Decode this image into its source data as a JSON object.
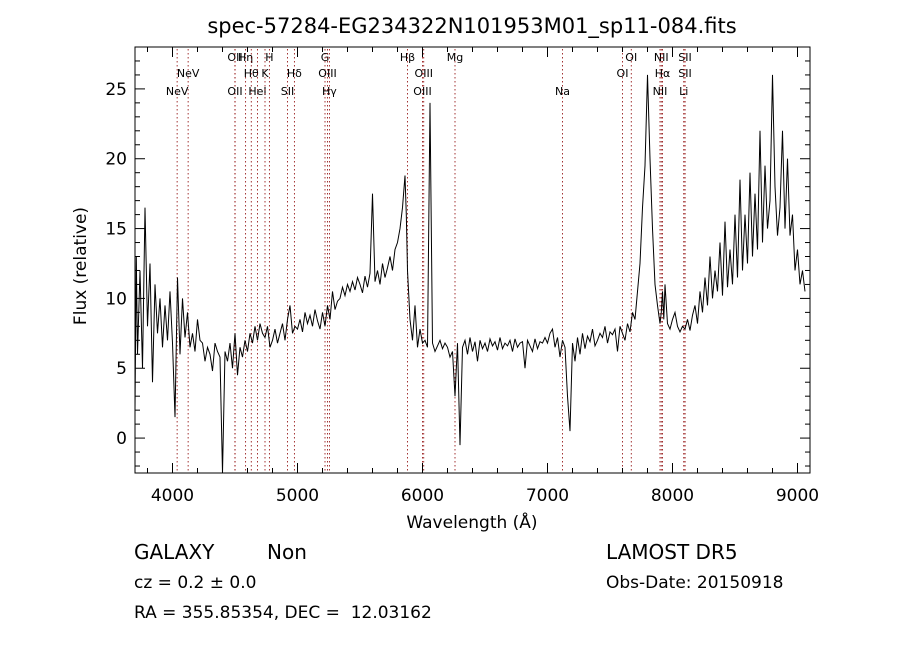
{
  "chart_data": {
    "type": "line",
    "title": "spec-57284-EG234322N101953M01_sp11-084.fits",
    "xlabel": "Wavelength (Å)",
    "ylabel": "Flux (relative)",
    "xlim": [
      3700,
      9100
    ],
    "ylim": [
      -2.5,
      28
    ],
    "x_ticks": [
      4000,
      5000,
      6000,
      7000,
      8000,
      9000
    ],
    "y_ticks": [
      0,
      5,
      10,
      15,
      20,
      25
    ],
    "grid": false,
    "series": [
      {
        "x": [
          3700,
          3710,
          3720,
          3740,
          3760,
          3780,
          3800,
          3820,
          3840,
          3860,
          3880,
          3900,
          3920,
          3940,
          3960,
          3980,
          4000,
          4020,
          4040,
          4060,
          4080,
          4100,
          4120,
          4140,
          4160,
          4180,
          4200,
          4220,
          4240,
          4260,
          4280,
          4300,
          4320,
          4340,
          4360,
          4380,
          4400,
          4420,
          4440,
          4460,
          4480,
          4500,
          4520,
          4540,
          4560,
          4580,
          4600,
          4620,
          4640,
          4660,
          4680,
          4700,
          4720,
          4740,
          4760,
          4780,
          4800,
          4820,
          4840,
          4860,
          4880,
          4900,
          4920,
          4940,
          4960,
          4980,
          5000,
          5020,
          5040,
          5060,
          5080,
          5100,
          5120,
          5140,
          5160,
          5180,
          5200,
          5220,
          5240,
          5260,
          5280,
          5300,
          5320,
          5340,
          5360,
          5380,
          5400,
          5420,
          5440,
          5460,
          5480,
          5500,
          5520,
          5540,
          5560,
          5580,
          5600,
          5620,
          5640,
          5660,
          5680,
          5700,
          5720,
          5740,
          5760,
          5780,
          5800,
          5820,
          5840,
          5860,
          5870,
          5880,
          5900,
          5920,
          5940,
          5960,
          5980,
          6000,
          6020,
          6040,
          6060,
          6080,
          6100,
          6120,
          6140,
          6160,
          6180,
          6200,
          6220,
          6240,
          6260,
          6280,
          6300,
          6320,
          6340,
          6360,
          6380,
          6400,
          6420,
          6440,
          6460,
          6480,
          6500,
          6520,
          6540,
          6560,
          6580,
          6600,
          6620,
          6640,
          6660,
          6680,
          6700,
          6720,
          6740,
          6760,
          6780,
          6800,
          6820,
          6840,
          6860,
          6880,
          6900,
          6920,
          6940,
          6960,
          6980,
          7000,
          7020,
          7040,
          7060,
          7080,
          7100,
          7120,
          7140,
          7160,
          7180,
          7200,
          7220,
          7240,
          7260,
          7280,
          7300,
          7320,
          7340,
          7360,
          7380,
          7400,
          7420,
          7440,
          7460,
          7480,
          7500,
          7520,
          7540,
          7560,
          7580,
          7600,
          7620,
          7640,
          7660,
          7680,
          7700,
          7720,
          7740,
          7760,
          7780,
          7800,
          7820,
          7840,
          7860,
          7880,
          7900,
          7910,
          7920,
          7930,
          7940,
          7960,
          7980,
          8000,
          8020,
          8040,
          8060,
          8080,
          8100,
          8120,
          8140,
          8160,
          8180,
          8200,
          8220,
          8240,
          8260,
          8280,
          8300,
          8320,
          8340,
          8360,
          8380,
          8400,
          8420,
          8440,
          8460,
          8480,
          8500,
          8520,
          8540,
          8560,
          8580,
          8600,
          8620,
          8640,
          8660,
          8680,
          8700,
          8720,
          8740,
          8760,
          8780,
          8800,
          8820,
          8840,
          8860,
          8880,
          8900,
          8920,
          8940,
          8960,
          8980,
          9000,
          9020,
          9040,
          9060
        ],
        "y": [
          2.0,
          13.0,
          6.0,
          12.0,
          5.0,
          16.5,
          8.0,
          12.5,
          4.0,
          11.0,
          7.5,
          10.0,
          6.5,
          9.5,
          7.0,
          10.5,
          6.8,
          1.5,
          11.5,
          6.0,
          10.0,
          7.2,
          9.0,
          6.5,
          7.5,
          6.2,
          8.5,
          7.0,
          6.8,
          5.5,
          6.5,
          6.0,
          4.8,
          6.8,
          6.2,
          5.8,
          -2.5,
          6.2,
          5.5,
          6.8,
          5.0,
          7.5,
          4.5,
          6.5,
          5.8,
          7.0,
          6.2,
          7.5,
          6.8,
          8.0,
          7.0,
          8.2,
          7.5,
          7.2,
          8.0,
          6.5,
          7.0,
          7.8,
          6.8,
          7.5,
          8.2,
          7.0,
          8.5,
          9.5,
          7.5,
          8.0,
          7.8,
          8.5,
          7.6,
          9.0,
          8.2,
          8.8,
          8.0,
          9.2,
          8.4,
          7.8,
          9.0,
          8.0,
          9.5,
          8.5,
          10.5,
          9.2,
          9.8,
          10.0,
          10.8,
          10.2,
          11.0,
          10.5,
          11.2,
          10.6,
          11.5,
          11.0,
          10.4,
          11.6,
          10.8,
          11.8,
          17.5,
          11.2,
          12.0,
          11.0,
          12.5,
          11.5,
          12.2,
          13.0,
          12.0,
          13.5,
          14.0,
          15.0,
          16.5,
          18.8,
          16.0,
          12.0,
          8.5,
          7.0,
          9.5,
          6.5,
          7.8,
          6.8,
          7.0,
          6.5,
          24.0,
          6.8,
          6.2,
          6.6,
          7.0,
          6.4,
          6.8,
          6.5,
          5.8,
          6.2,
          3.0,
          6.8,
          -0.5,
          6.5,
          7.0,
          6.0,
          7.2,
          6.2,
          6.9,
          5.5,
          7.0,
          6.4,
          6.8,
          6.2,
          7.1,
          6.6,
          6.9,
          6.3,
          7.2,
          6.4,
          6.8,
          6.6,
          7.0,
          6.2,
          7.1,
          6.5,
          6.8,
          6.9,
          5.0,
          7.0,
          6.6,
          6.2,
          7.1,
          6.4,
          6.9,
          6.8,
          7.2,
          6.8,
          7.5,
          7.8,
          6.5,
          7.2,
          5.8,
          7.0,
          6.5,
          3.0,
          0.5,
          6.8,
          5.5,
          7.2,
          6.0,
          7.5,
          6.4,
          7.3,
          6.9,
          7.8,
          6.6,
          7.0,
          7.5,
          7.2,
          8.0,
          6.8,
          7.6,
          7.4,
          7.8,
          6.2,
          8.0,
          7.5,
          7.0,
          8.2,
          7.6,
          9.0,
          8.5,
          10.5,
          12.5,
          16.5,
          19.5,
          26.0,
          20.0,
          15.0,
          11.0,
          9.5,
          8.2,
          9.0,
          10.5,
          8.5,
          11.0,
          8.2,
          7.8,
          8.5,
          9.0,
          8.0,
          7.6,
          8.0,
          7.8,
          8.5,
          7.7,
          8.8,
          9.5,
          8.2,
          10.5,
          9.0,
          11.5,
          9.5,
          13.0,
          10.0,
          12.0,
          10.5,
          14.0,
          10.2,
          15.5,
          10.8,
          13.5,
          11.0,
          16.0,
          11.5,
          18.5,
          12.0,
          16.0,
          12.5,
          19.0,
          13.0,
          17.5,
          13.5,
          22.0,
          14.0,
          19.5,
          15.0,
          17.0,
          26.0,
          18.0,
          14.5,
          16.5,
          22.0,
          15.0,
          20.0,
          14.5,
          16.0,
          12.0,
          13.5,
          11.0,
          12.0,
          10.5
        ]
      }
    ],
    "lines": [
      {
        "wl": 4037,
        "label": "NeV",
        "row": 2
      },
      {
        "wl": 4125,
        "label": "NeV",
        "row": 1
      },
      {
        "wl": 4500,
        "label": "OII",
        "row": 0
      },
      {
        "wl": 4500,
        "label": "OII",
        "row": 2
      },
      {
        "wl": 4585,
        "label": "Hη",
        "row": 0
      },
      {
        "wl": 4630,
        "label": "Hθ",
        "row": 1
      },
      {
        "wl": 4680,
        "label": "HeI",
        "row": 2
      },
      {
        "wl": 4740,
        "label": "K",
        "row": 1
      },
      {
        "wl": 4775,
        "label": "H",
        "row": 0
      },
      {
        "wl": 4920,
        "label": "SII",
        "row": 2
      },
      {
        "wl": 4975,
        "label": "Hδ",
        "row": 1
      },
      {
        "wl": 5220,
        "label": "G",
        "row": 0
      },
      {
        "wl": 5240,
        "label": "OIII",
        "row": 1
      },
      {
        "wl": 5255,
        "label": "Hγ",
        "row": 2
      },
      {
        "wl": 5880,
        "label": "Hβ",
        "row": 0
      },
      {
        "wl": 6010,
        "label": "OIII",
        "row": 1
      },
      {
        "wl": 6000,
        "label": "OIII",
        "row": 2
      },
      {
        "wl": 6260,
        "label": "Mg",
        "row": 0
      },
      {
        "wl": 7120,
        "label": "Na",
        "row": 2
      },
      {
        "wl": 7670,
        "label": "OI",
        "row": 0
      },
      {
        "wl": 7600,
        "label": "OI",
        "row": 1
      },
      {
        "wl": 7910,
        "label": "NII",
        "row": 0
      },
      {
        "wl": 7920,
        "label": "Hα",
        "row": 1
      },
      {
        "wl": 7900,
        "label": "NII",
        "row": 2
      },
      {
        "wl": 8100,
        "label": "SII",
        "row": 0
      },
      {
        "wl": 8100,
        "label": "SII",
        "row": 1
      },
      {
        "wl": 8090,
        "label": "Li",
        "row": 2
      }
    ]
  },
  "footer": {
    "object_class": "GALAXY",
    "subclass": "Non",
    "survey": "LAMOST DR5",
    "cz": "cz = 0.2 ± 0.0",
    "obs_date": "Obs-Date: 20150918",
    "coords": "RA = 355.85354, DEC =  12.03162"
  }
}
